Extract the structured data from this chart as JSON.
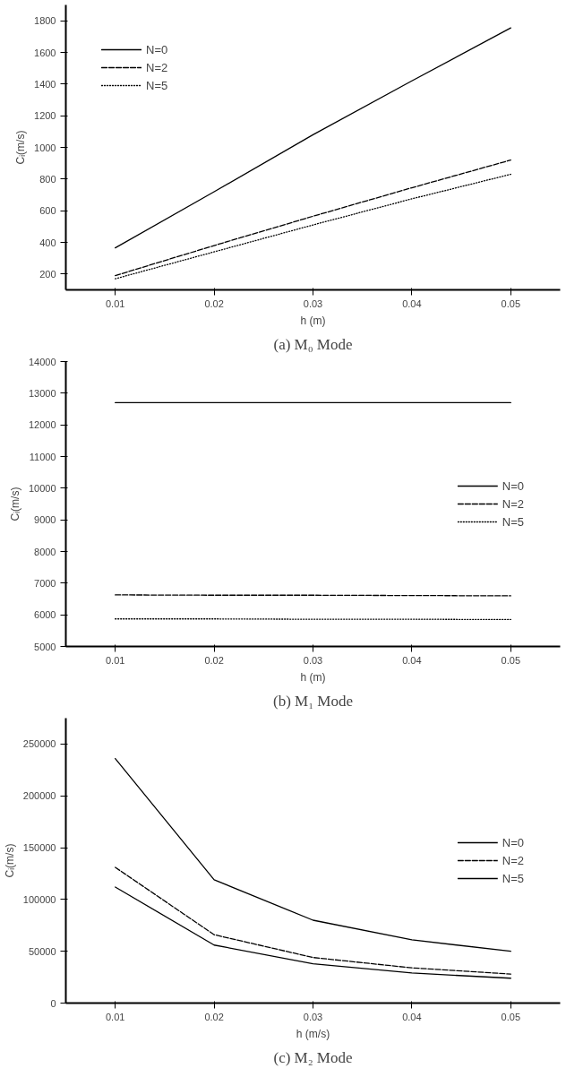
{
  "chart_data": [
    {
      "type": "line",
      "title": "(a) M₀ Mode",
      "xlabel": "h (m)",
      "ylabel": "Cᵢ(m/s)",
      "x": [
        0.01,
        0.02,
        0.03,
        0.04,
        0.05
      ],
      "xlim": [
        0.005,
        0.055
      ],
      "xticks": [
        0.01,
        0.02,
        0.03,
        0.04,
        0.05
      ],
      "ylim": [
        100,
        1900
      ],
      "yticks": [
        200,
        400,
        600,
        800,
        1000,
        1200,
        1400,
        1600,
        1800
      ],
      "legend": "top left",
      "grid": false,
      "series": [
        {
          "name": "N=0",
          "color": "#000000",
          "line_style": "solid",
          "values": [
            365,
            720,
            1080,
            1420,
            1755
          ]
        },
        {
          "name": "N=2",
          "color": "#000000",
          "line_style": "dashed",
          "values": [
            190,
            380,
            565,
            745,
            920
          ]
        },
        {
          "name": "N=5",
          "color": "#000000",
          "line_style": "dotted",
          "values": [
            170,
            340,
            510,
            675,
            830
          ]
        }
      ]
    },
    {
      "type": "line",
      "title": "(b) M₁ Mode",
      "xlabel": "h (m)",
      "ylabel": "Cᵢ(m/s)",
      "x": [
        0.01,
        0.02,
        0.03,
        0.04,
        0.05
      ],
      "xlim": [
        0.005,
        0.055
      ],
      "xticks": [
        0.01,
        0.02,
        0.03,
        0.04,
        0.05
      ],
      "ylim": [
        5000,
        14000
      ],
      "yticks": [
        5000,
        6000,
        7000,
        8000,
        9000,
        10000,
        11000,
        12000,
        13000,
        14000
      ],
      "legend": "right",
      "grid": false,
      "series": [
        {
          "name": "N=0",
          "color": "#000000",
          "line_style": "solid",
          "values": [
            12700,
            12700,
            12700,
            12700,
            12700
          ]
        },
        {
          "name": "N=2",
          "color": "#000000",
          "line_style": "dashed",
          "values": [
            6630,
            6620,
            6620,
            6610,
            6600
          ]
        },
        {
          "name": "N=5",
          "color": "#000000",
          "line_style": "dotted",
          "values": [
            5870,
            5870,
            5860,
            5860,
            5850
          ]
        }
      ]
    },
    {
      "type": "line",
      "title": "(c) M₂ Mode",
      "xlabel": "h (m/s)",
      "ylabel": "Cᵢ(m/s)",
      "x": [
        0.01,
        0.02,
        0.03,
        0.04,
        0.05
      ],
      "xlim": [
        0.005,
        0.055
      ],
      "xticks": [
        0.01,
        0.02,
        0.03,
        0.04,
        0.05
      ],
      "ylim": [
        0,
        275000
      ],
      "yticks": [
        0,
        50000,
        100000,
        150000,
        200000,
        250000
      ],
      "legend": "right",
      "grid": false,
      "series": [
        {
          "name": "N=0",
          "color": "#000000",
          "line_style": "solid",
          "values": [
            236000,
            119000,
            80000,
            61000,
            50000
          ]
        },
        {
          "name": "N=2",
          "color": "#000000",
          "line_style": "dashed",
          "values": [
            131000,
            66000,
            44000,
            34000,
            28000
          ]
        },
        {
          "name": "N=5",
          "color": "#000000",
          "line_style": "solid",
          "values": [
            112000,
            56000,
            38000,
            29000,
            24000
          ]
        }
      ]
    }
  ]
}
